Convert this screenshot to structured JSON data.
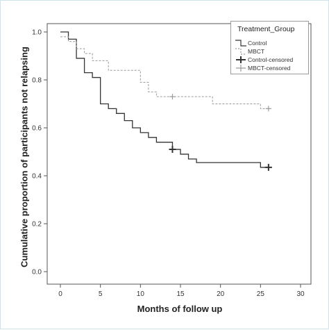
{
  "chart_data": {
    "type": "line",
    "subtype": "kaplan-meier step",
    "xlabel": "Months of follow up",
    "ylabel": "Cumulative proportion of participants not relapsing",
    "xlim": [
      0,
      30
    ],
    "ylim": [
      0,
      1.0
    ],
    "x_ticks": [
      "0",
      "5",
      "10",
      "15",
      "20",
      "25",
      "30"
    ],
    "y_ticks": [
      "0.0",
      "0.2",
      "0.4",
      "0.6",
      "0.8",
      "1.0"
    ],
    "grid": false,
    "legend": {
      "title": "Treatment_Group",
      "placement": "top-right",
      "entries": [
        "Control",
        "MBCT",
        "Control-censored",
        "MBCT-censored"
      ]
    },
    "series": [
      {
        "name": "Control",
        "style": "solid",
        "color": "#333333",
        "x": [
          0,
          1,
          2,
          3,
          4,
          5,
          6,
          7,
          8,
          9,
          10,
          11,
          12,
          14,
          15,
          16,
          17,
          25,
          26
        ],
        "y": [
          1.0,
          0.97,
          0.89,
          0.83,
          0.81,
          0.7,
          0.68,
          0.66,
          0.63,
          0.6,
          0.58,
          0.56,
          0.54,
          0.51,
          0.49,
          0.47,
          0.455,
          0.435,
          0.435
        ]
      },
      {
        "name": "MBCT",
        "style": "dashed",
        "color": "#9a9a9a",
        "x": [
          0,
          1,
          2,
          3,
          4,
          6,
          10,
          11,
          12,
          14,
          19,
          25,
          26
        ],
        "y": [
          0.98,
          0.96,
          0.93,
          0.91,
          0.88,
          0.84,
          0.79,
          0.75,
          0.73,
          0.73,
          0.7,
          0.68,
          0.68
        ]
      }
    ],
    "censored": [
      {
        "name": "Control-censored",
        "color": "#333333",
        "x": [
          14,
          26
        ],
        "y": [
          0.51,
          0.435
        ]
      },
      {
        "name": "MBCT-censored",
        "color": "#9a9a9a",
        "x": [
          14,
          26
        ],
        "y": [
          0.73,
          0.68
        ]
      }
    ]
  }
}
